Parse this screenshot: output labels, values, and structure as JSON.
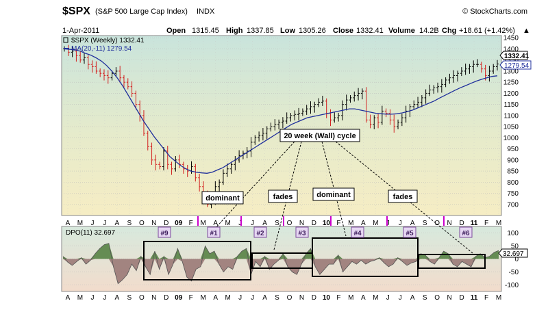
{
  "header": {
    "symbol": "$SPX",
    "name": "(S&P 500 Large Cap Index)",
    "exchange": "INDX",
    "copyright": "© StockCharts.com",
    "date": "1-Apr-2011",
    "open_label": "Open",
    "open": "1315.45",
    "high_label": "High",
    "high": "1337.85",
    "low_label": "Low",
    "low": "1305.26",
    "close_label": "Close",
    "close": "1332.41",
    "volume_label": "Volume",
    "volume": "14.2B",
    "chg_label": "Chg",
    "chg": "+18.61 (+1.42%)",
    "chg_arrow": "▲"
  },
  "price_panel": {
    "legend_symbol": "$SPX (Weekly) 1332.41",
    "legend_ma": "MA(20,-11) 1279.54",
    "last_price_tag": "1332.41",
    "ma_tag": "1279.54",
    "y_ticks": [
      "1450",
      "1400",
      "1350",
      "1300",
      "1250",
      "1200",
      "1150",
      "1100",
      "1050",
      "1000",
      "950",
      "900",
      "850",
      "800",
      "750",
      "700"
    ],
    "colors": {
      "up": "#000000",
      "down": "#d21e1e",
      "ma": "#1f2f9c",
      "bg_top": "#cfe6dc",
      "bg_bottom": "#f5ecc3"
    }
  },
  "dpo_panel": {
    "legend": "DPO(11) 32.697",
    "value_tag": "32.697",
    "y_ticks": [
      "100",
      "50",
      "0",
      "-50",
      "-100"
    ],
    "colors": {
      "fill": "#4f7d3c",
      "stroke": "#555555",
      "neg_fill": "#7a5a5a"
    }
  },
  "x_axis_labels": [
    "A",
    "M",
    "J",
    "J",
    "A",
    "S",
    "O",
    "N",
    "D",
    "09",
    "F",
    "M",
    "A",
    "M",
    "J",
    "J",
    "A",
    "S",
    "O",
    "N",
    "D",
    "10",
    "F",
    "M",
    "A",
    "M",
    "J",
    "J",
    "A",
    "S",
    "O",
    "N",
    "D",
    "11",
    "F",
    "M"
  ],
  "annotations": {
    "cycle_title": "20 week (Wall) cycle",
    "phase_labels": [
      "dominant",
      "fades",
      "dominant",
      "fades"
    ],
    "cycle_markers": [
      "#9",
      "#1",
      "#2",
      "#3",
      "#4",
      "#5",
      "#6"
    ]
  },
  "chart_data": {
    "type": "line",
    "title": "$SPX (S&P 500 Large Cap Index) Weekly",
    "series": [
      {
        "name": "$SPX (Weekly)",
        "values": [
          1400,
          1385,
          1390,
          1370,
          1350,
          1360,
          1330,
          1320,
          1300,
          1290,
          1280,
          1270,
          1290,
          1300,
          1270,
          1250,
          1230,
          1200,
          1150,
          1100,
          1020,
          960,
          900,
          880,
          870,
          940,
          880,
          860,
          900,
          880,
          860,
          850,
          870,
          820,
          780,
          750,
          700,
          720,
          780,
          800,
          840,
          860,
          880,
          900,
          920,
          930,
          940,
          980,
          1000,
          1010,
          1020,
          1040,
          1050,
          1060,
          1070,
          1075,
          1090,
          1100,
          1105,
          1110,
          1120,
          1130,
          1140,
          1150,
          1160,
          1165,
          1110,
          1080,
          1090,
          1100,
          1150,
          1170,
          1180,
          1190,
          1200,
          1210,
          1080,
          1060,
          1090,
          1070,
          1120,
          1110,
          1080,
          1050,
          1070,
          1090,
          1120,
          1140,
          1150,
          1160,
          1180,
          1200,
          1215,
          1225,
          1230,
          1240,
          1260,
          1270,
          1280,
          1290,
          1300,
          1310,
          1320,
          1330,
          1330,
          1310,
          1280,
          1300,
          1320,
          1332
        ]
      },
      {
        "name": "MA(20,-11)",
        "values": [
          1400,
          1398,
          1396,
          1390,
          1380,
          1372,
          1360,
          1345,
          1325,
          1300,
          1270,
          1235,
          1195,
          1155,
          1115,
          1075,
          1040,
          1005,
          975,
          945,
          915,
          895,
          875,
          860,
          850,
          845,
          842,
          840,
          845,
          855,
          865,
          880,
          895,
          910,
          925,
          940,
          955,
          970,
          985,
          1000,
          1015,
          1030,
          1045,
          1060,
          1070,
          1080,
          1090,
          1095,
          1100,
          1105,
          1110,
          1115,
          1120,
          1125,
          1130,
          1130,
          1125,
          1120,
          1115,
          1110,
          1108,
          1106,
          1106,
          1108,
          1112,
          1118,
          1125,
          1135,
          1145,
          1155,
          1165,
          1178,
          1190,
          1202,
          1214,
          1225,
          1235,
          1245,
          1255,
          1263,
          1270,
          1276,
          1279
        ]
      },
      {
        "name": "DPO(11)",
        "values": [
          10,
          -12,
          -25,
          -10,
          5,
          -20,
          -5,
          20,
          40,
          55,
          60,
          -30,
          -95,
          -80,
          -60,
          -20,
          -45,
          10,
          -30,
          -60,
          30,
          -40,
          10,
          -60,
          -20,
          40,
          -10,
          -70,
          -85,
          -40,
          -30,
          50,
          20,
          30,
          -20,
          -50,
          -30,
          -40,
          10,
          30,
          40,
          -60,
          -10,
          -30,
          10,
          -40,
          -20,
          -5,
          20,
          -30,
          -50,
          -60,
          -20,
          20,
          40,
          -30,
          -60,
          -40,
          -20,
          -20,
          15,
          -50,
          -30,
          -10,
          -20,
          -5,
          -20,
          -10,
          -5,
          5,
          -15,
          -30,
          -20,
          5,
          -10,
          -25,
          -15,
          -10,
          20,
          15,
          -10,
          -20,
          5,
          30,
          20,
          -20,
          -30,
          -10,
          -20,
          -30,
          10,
          20,
          5,
          10,
          25,
          32.7
        ]
      }
    ],
    "xlabel": "",
    "ylabel": "",
    "ylim": [
      650,
      1450
    ],
    "dpo_ylim": [
      -120,
      120
    ],
    "grid": true,
    "legend_position": "top-left"
  }
}
